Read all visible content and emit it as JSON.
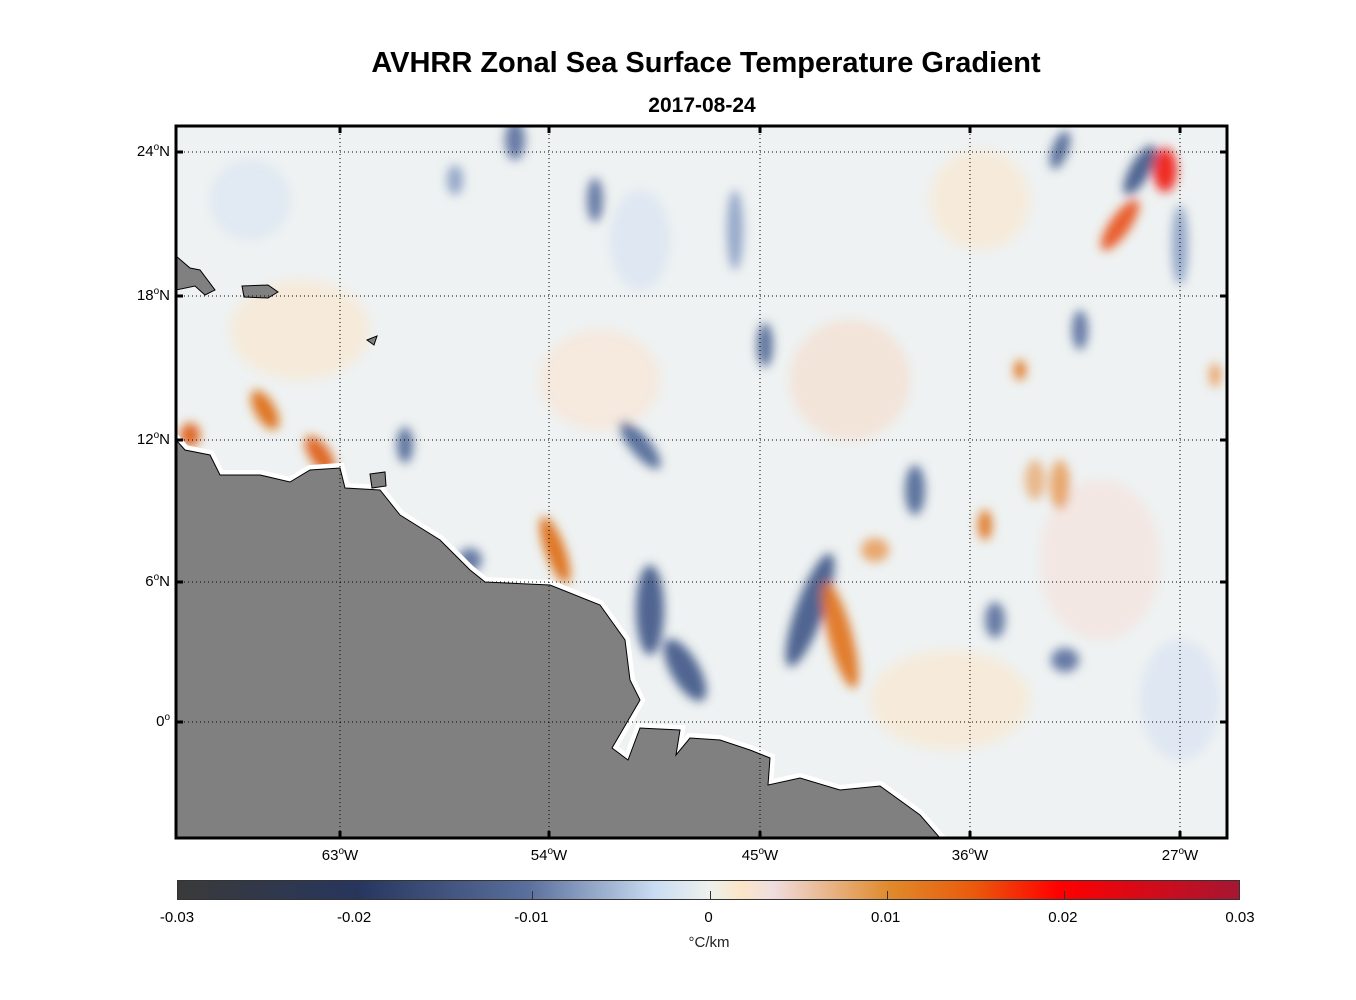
{
  "title": "AVHRR Zonal Sea Surface Temperature Gradient",
  "subtitle": "2017-08-24",
  "map": {
    "lat_ticks": [
      {
        "value": "24",
        "suffix": "N"
      },
      {
        "value": "18",
        "suffix": "N"
      },
      {
        "value": "12",
        "suffix": "N"
      },
      {
        "value": "6",
        "suffix": "N"
      },
      {
        "value": "0",
        "suffix": ""
      }
    ],
    "lon_ticks": [
      {
        "value": "63",
        "suffix": "W"
      },
      {
        "value": "54",
        "suffix": "W"
      },
      {
        "value": "45",
        "suffix": "W"
      },
      {
        "value": "36",
        "suffix": "W"
      },
      {
        "value": "27",
        "suffix": "W"
      }
    ],
    "degree_symbol": "o",
    "land_color": "#808080"
  },
  "colorbar": {
    "ticks": [
      "-0.03",
      "-0.02",
      "-0.01",
      "0",
      "0.01",
      "0.02",
      "0.03"
    ],
    "range": [
      -0.03,
      0.03
    ],
    "units": "°C/km",
    "colors": [
      "#3a3a3a",
      "#27365e",
      "#5a6f9c",
      "#edf1ee",
      "#e08a2c",
      "#ff0000",
      "#a61632"
    ]
  }
}
